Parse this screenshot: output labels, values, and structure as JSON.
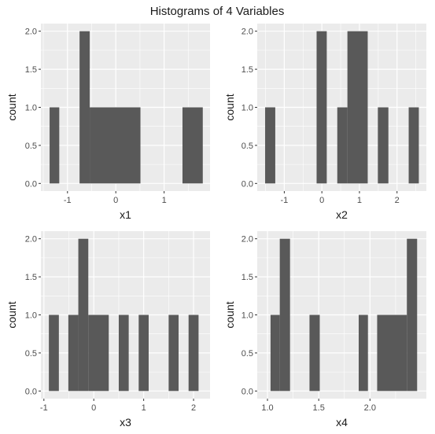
{
  "title": "Histograms of 4 Variables",
  "colors": {
    "panel": "#ebebeb",
    "grid": "#ffffff",
    "bar": "#595959",
    "tick": "#333333"
  },
  "chart_data": [
    {
      "type": "bar",
      "xlabel": "x1",
      "ylabel": "count",
      "ylim": [
        0,
        2
      ],
      "yticks": [
        0.0,
        0.5,
        1.0,
        1.5,
        2.0
      ],
      "ytick_labels": [
        "0.0",
        "0.5",
        "1.0",
        "1.5",
        "2.0"
      ],
      "xlim": [
        -1.55,
        1.95
      ],
      "xticks": [
        -1,
        0,
        1
      ],
      "xtick_labels": [
        "-1",
        "0",
        "1"
      ],
      "bins": [
        {
          "x0": -1.37,
          "x1": -1.17,
          "count": 1
        },
        {
          "x0": -0.75,
          "x1": -0.54,
          "count": 2
        },
        {
          "x0": -0.54,
          "x1": 0.51,
          "count": 1
        },
        {
          "x0": 1.38,
          "x1": 1.8,
          "count": 1
        }
      ]
    },
    {
      "type": "bar",
      "xlabel": "x2",
      "ylabel": "count",
      "ylim": [
        0,
        2
      ],
      "yticks": [
        0.0,
        0.5,
        1.0,
        1.5,
        2.0
      ],
      "ytick_labels": [
        "0.0",
        "0.5",
        "1.0",
        "1.5",
        "2.0"
      ],
      "xlim": [
        -1.72,
        2.78
      ],
      "xticks": [
        -1,
        0,
        1,
        2
      ],
      "xtick_labels": [
        "-1",
        "0",
        "1",
        "2"
      ],
      "bins": [
        {
          "x0": -1.51,
          "x1": -1.24,
          "count": 1
        },
        {
          "x0": -0.14,
          "x1": 0.13,
          "count": 2
        },
        {
          "x0": 0.41,
          "x1": 0.68,
          "count": 1
        },
        {
          "x0": 0.68,
          "x1": 1.22,
          "count": 2
        },
        {
          "x0": 1.49,
          "x1": 1.77,
          "count": 1
        },
        {
          "x0": 2.31,
          "x1": 2.58,
          "count": 1
        }
      ]
    },
    {
      "type": "bar",
      "xlabel": "x3",
      "ylabel": "count",
      "ylim": [
        0,
        2
      ],
      "yticks": [
        0.0,
        0.5,
        1.0,
        1.5,
        2.0
      ],
      "ytick_labels": [
        "0.0",
        "0.5",
        "1.0",
        "1.5",
        "2.0"
      ],
      "xlim": [
        -1.06,
        2.33
      ],
      "xticks": [
        -1,
        0,
        1,
        2
      ],
      "xtick_labels": [
        "-1",
        "0",
        "1",
        "2"
      ],
      "bins": [
        {
          "x0": -0.9,
          "x1": -0.7,
          "count": 1
        },
        {
          "x0": -0.51,
          "x1": -0.31,
          "count": 1
        },
        {
          "x0": -0.31,
          "x1": -0.11,
          "count": 2
        },
        {
          "x0": -0.11,
          "x1": 0.3,
          "count": 1
        },
        {
          "x0": 0.5,
          "x1": 0.7,
          "count": 1
        },
        {
          "x0": 0.9,
          "x1": 1.1,
          "count": 1
        },
        {
          "x0": 1.5,
          "x1": 1.7,
          "count": 1
        },
        {
          "x0": 1.9,
          "x1": 2.1,
          "count": 1
        }
      ]
    },
    {
      "type": "bar",
      "xlabel": "x4",
      "ylabel": "count",
      "ylim": [
        0,
        2
      ],
      "yticks": [
        0.0,
        0.5,
        1.0,
        1.5,
        2.0
      ],
      "ytick_labels": [
        "0.0",
        "0.5",
        "1.0",
        "1.5",
        "2.0"
      ],
      "xlim": [
        0.9,
        2.55
      ],
      "xticks": [
        1.0,
        1.5,
        2.0
      ],
      "xtick_labels": [
        "1.0",
        "1.5",
        "2.0"
      ],
      "bins": [
        {
          "x0": 1.03,
          "x1": 1.12,
          "count": 1
        },
        {
          "x0": 1.12,
          "x1": 1.22,
          "count": 2
        },
        {
          "x0": 1.41,
          "x1": 1.51,
          "count": 1
        },
        {
          "x0": 1.89,
          "x1": 1.98,
          "count": 1
        },
        {
          "x0": 2.07,
          "x1": 2.36,
          "count": 1
        },
        {
          "x0": 2.36,
          "x1": 2.46,
          "count": 2
        }
      ]
    }
  ]
}
